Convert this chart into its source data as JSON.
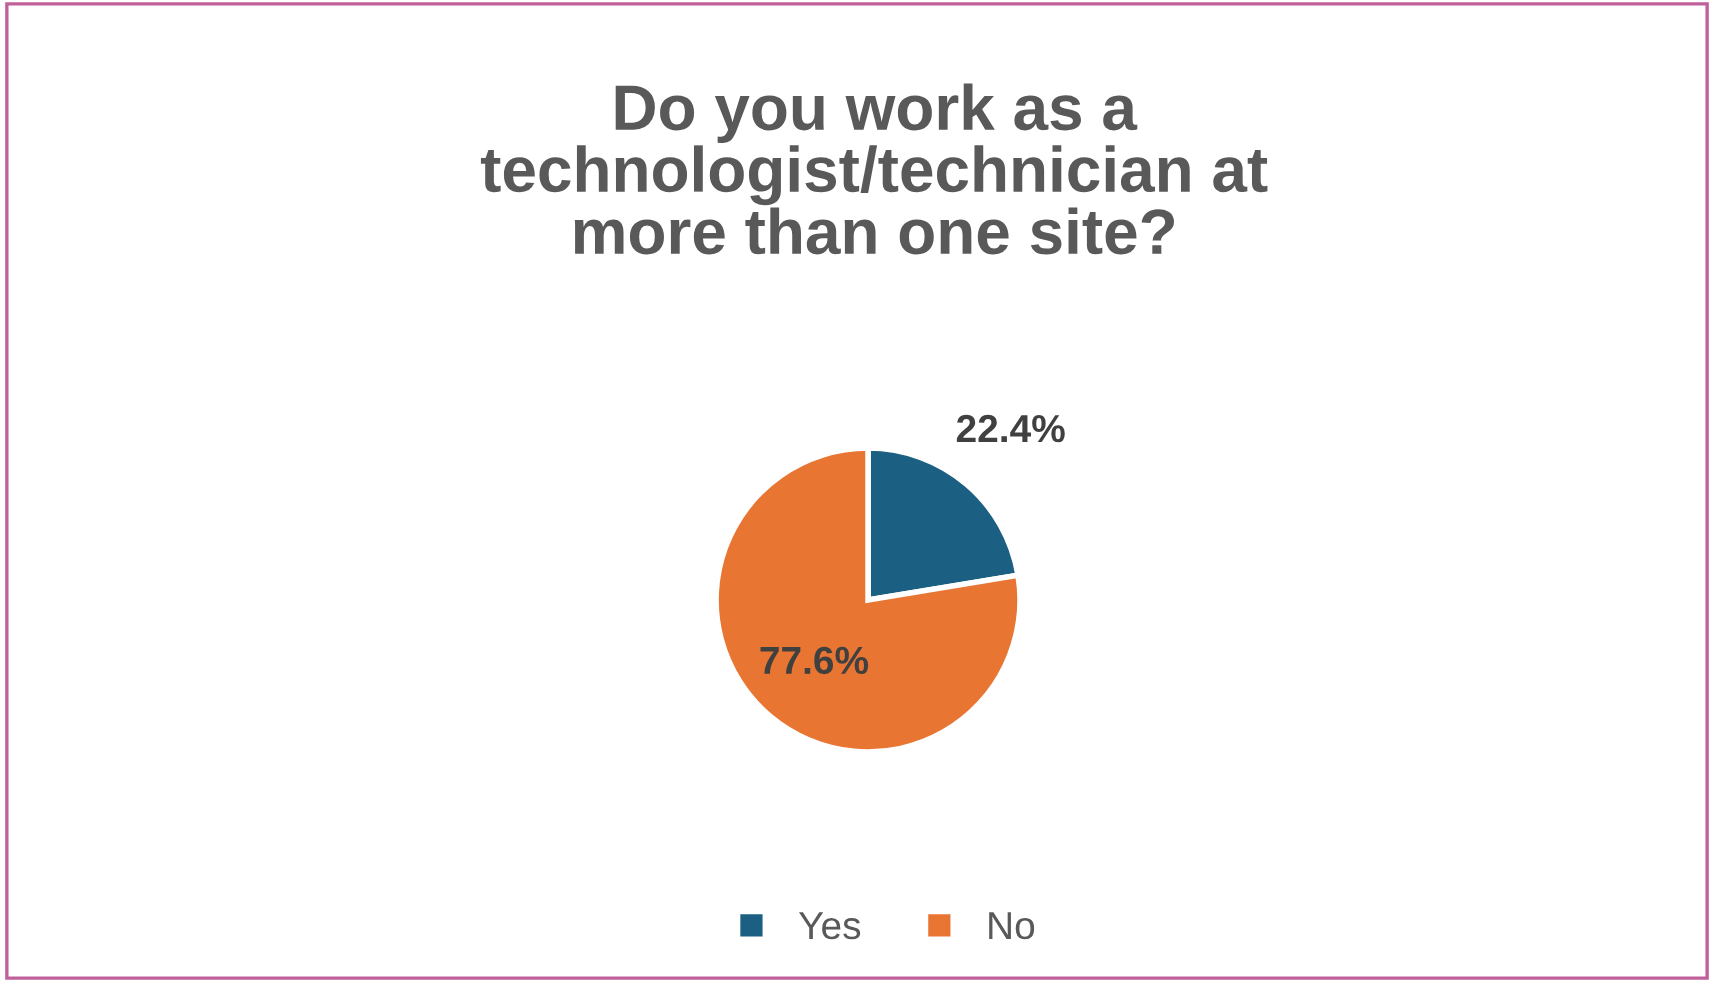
{
  "chart_data": {
    "type": "pie",
    "title": "Do you work as a\ntechnologist/technician at\nmore than one site?",
    "categories": [
      "Yes",
      "No"
    ],
    "values": [
      22.4,
      77.6
    ],
    "colors": [
      "#1b5f82",
      "#e87532"
    ],
    "value_labels": [
      "22.4%",
      "77.6%"
    ],
    "legend": "bottom"
  }
}
